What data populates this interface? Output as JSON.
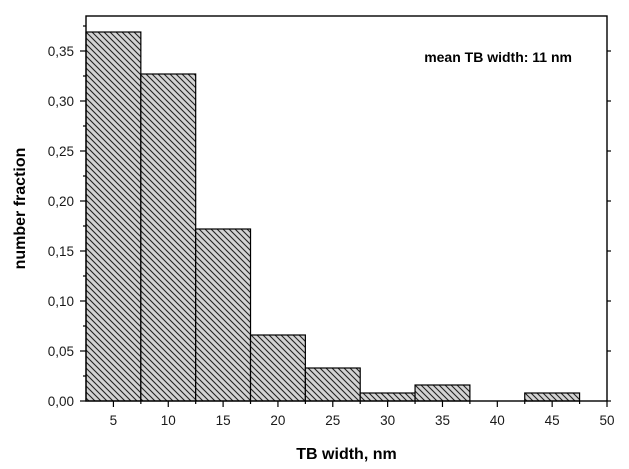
{
  "chart_data": {
    "type": "bar",
    "title": "",
    "xlabel": "TB width, nm",
    "ylabel": "number fraction",
    "annotation": "mean TB width: 11 nm",
    "xlim": [
      2.5,
      50
    ],
    "ylim": [
      0,
      0.385
    ],
    "bin_width": 5,
    "bins": [
      {
        "center": 5,
        "value": 0.369
      },
      {
        "center": 10,
        "value": 0.327
      },
      {
        "center": 15,
        "value": 0.172
      },
      {
        "center": 20,
        "value": 0.066
      },
      {
        "center": 25,
        "value": 0.033
      },
      {
        "center": 30,
        "value": 0.008
      },
      {
        "center": 35,
        "value": 0.016
      },
      {
        "center": 40,
        "value": 0.0
      },
      {
        "center": 45,
        "value": 0.008
      }
    ],
    "x_ticks": [
      5,
      10,
      15,
      20,
      25,
      30,
      35,
      40,
      45,
      50
    ],
    "x_tick_labels": [
      "5",
      "10",
      "15",
      "20",
      "25",
      "30",
      "35",
      "40",
      "45",
      "50"
    ],
    "y_ticks": [
      0,
      0.05,
      0.1,
      0.15,
      0.2,
      0.25,
      0.3,
      0.35
    ],
    "y_tick_labels": [
      "0,00",
      "0,05",
      "0,10",
      "0,15",
      "0,20",
      "0,25",
      "0,30",
      "0,35"
    ],
    "bar_fill": "#d3d3d3",
    "hatch_color": "#222222",
    "grid": false
  }
}
